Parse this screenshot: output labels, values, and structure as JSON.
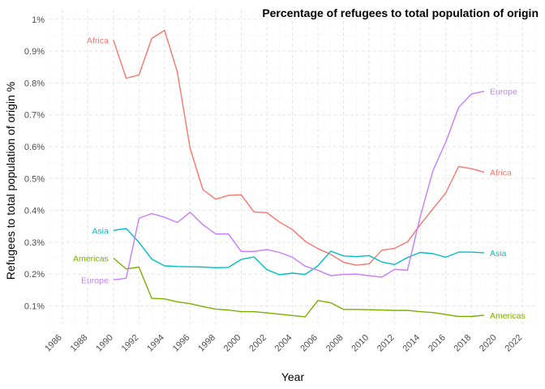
{
  "chart_data": {
    "type": "line",
    "title": "Percentage of refugees to total population of origin",
    "xlabel": "Year",
    "ylabel": "Refugees to total population of origin %",
    "xlim": [
      1985,
      2023
    ],
    "ylim": [
      0.03,
      1.03
    ],
    "x_ticks": [
      1986,
      1988,
      1990,
      1992,
      1994,
      1996,
      1998,
      2000,
      2002,
      2004,
      2006,
      2008,
      2010,
      2012,
      2014,
      2016,
      2018,
      2020,
      2022
    ],
    "x_tick_labels": [
      "1986",
      "1988",
      "1990",
      "1992",
      "1994",
      "1996",
      "1998",
      "2000",
      "2002",
      "2004",
      "2006",
      "2008",
      "2010",
      "2012",
      "2014",
      "2016",
      "2018",
      "2020",
      "2022"
    ],
    "y_ticks": [
      0.1,
      0.2,
      0.3,
      0.4,
      0.5,
      0.6,
      0.7,
      0.8,
      0.9,
      1.0
    ],
    "y_tick_labels": [
      "0.1%",
      "0.2%",
      "0.3%",
      "0.4%",
      "0.5%",
      "0.6%",
      "0.7%",
      "0.8%",
      "0.9%",
      "1%"
    ],
    "grid": true,
    "legend": "none (direct labels at line ends)",
    "x": [
      1990,
      1991,
      1992,
      1993,
      1994,
      1995,
      1996,
      1997,
      1998,
      1999,
      2000,
      2001,
      2002,
      2003,
      2004,
      2005,
      2006,
      2007,
      2008,
      2009,
      2010,
      2011,
      2012,
      2013,
      2014,
      2015,
      2016,
      2017,
      2018,
      2019
    ],
    "series": [
      {
        "name": "Africa",
        "color": "#F8766D",
        "values": [
          0.935,
          0.815,
          0.825,
          0.94,
          0.965,
          0.835,
          0.595,
          0.465,
          0.435,
          0.447,
          0.449,
          0.395,
          0.393,
          0.363,
          0.34,
          0.303,
          0.28,
          0.262,
          0.237,
          0.228,
          0.232,
          0.275,
          0.281,
          0.301,
          0.355,
          0.405,
          0.455,
          0.538,
          0.531,
          0.52
        ]
      },
      {
        "name": "Americas",
        "color": "#7CAE00",
        "values": [
          0.25,
          0.216,
          0.222,
          0.124,
          0.122,
          0.113,
          0.107,
          0.098,
          0.09,
          0.087,
          0.082,
          0.082,
          0.078,
          0.074,
          0.07,
          0.066,
          0.117,
          0.11,
          0.089,
          0.089,
          0.088,
          0.087,
          0.086,
          0.086,
          0.082,
          0.079,
          0.073,
          0.067,
          0.067,
          0.071
        ]
      },
      {
        "name": "Asia",
        "color": "#00BFC4",
        "values": [
          0.337,
          0.343,
          0.3,
          0.247,
          0.226,
          0.224,
          0.223,
          0.222,
          0.22,
          0.221,
          0.246,
          0.254,
          0.214,
          0.198,
          0.203,
          0.199,
          0.226,
          0.272,
          0.257,
          0.255,
          0.258,
          0.238,
          0.23,
          0.252,
          0.268,
          0.264,
          0.253,
          0.269,
          0.269,
          0.267
        ]
      },
      {
        "name": "Europe",
        "color": "#C77CFF",
        "values": [
          0.182,
          0.187,
          0.375,
          0.39,
          0.378,
          0.362,
          0.394,
          0.355,
          0.326,
          0.326,
          0.271,
          0.271,
          0.277,
          0.268,
          0.253,
          0.225,
          0.212,
          0.195,
          0.199,
          0.2,
          0.195,
          0.19,
          0.215,
          0.212,
          0.38,
          0.525,
          0.615,
          0.723,
          0.765,
          0.774
        ]
      }
    ]
  }
}
